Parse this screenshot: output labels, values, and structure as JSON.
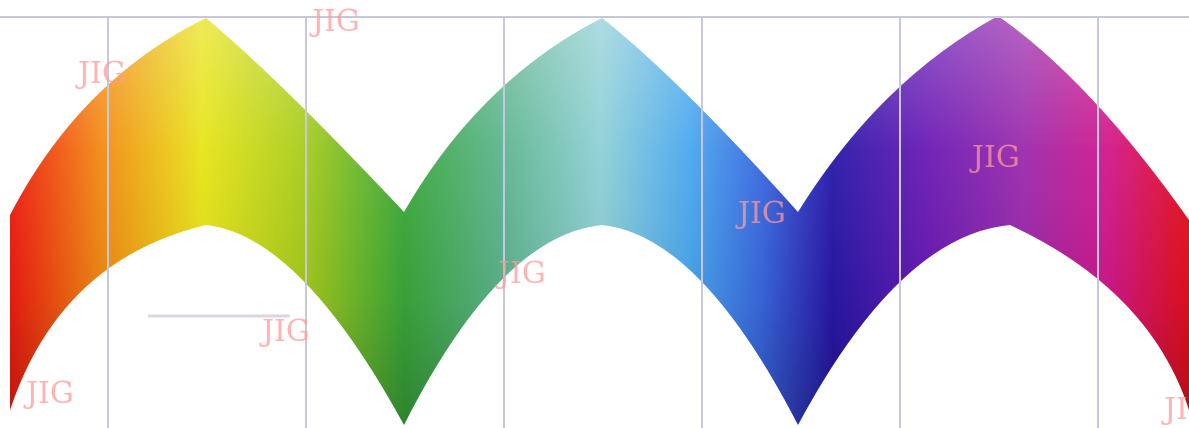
{
  "watermark": {
    "text": "JIG",
    "color": "#ff9a9a"
  },
  "color_band": {
    "hue_stops": [
      "#ff0000",
      "#ffff00",
      "#00c000",
      "#00ffff",
      "#0000ff",
      "#ff00ff",
      "#ff0000"
    ],
    "guide_line_color": "#c8c8dc"
  }
}
